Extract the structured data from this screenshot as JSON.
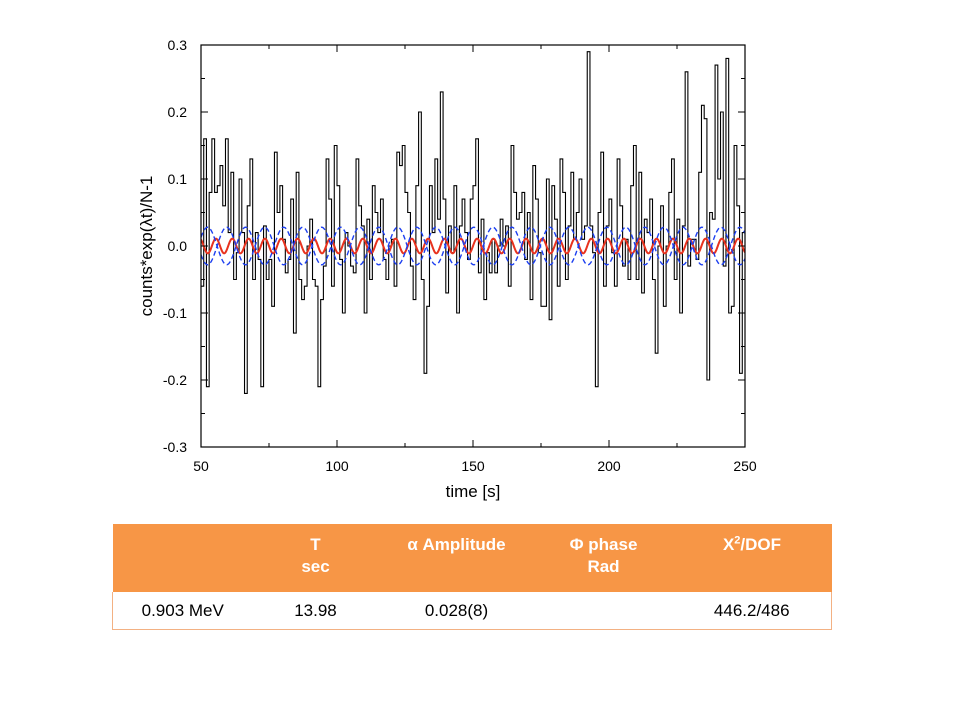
{
  "chart_data": {
    "type": "line",
    "xlabel": "time [s]",
    "ylabel": "counts*exp(λt)/N-1",
    "xlim": [
      50,
      250
    ],
    "ylim": [
      -0.3,
      0.3
    ],
    "x_ticks": [
      50,
      100,
      150,
      200,
      250
    ],
    "x_tick_labels": [
      "50",
      "100",
      "150",
      "200",
      "250"
    ],
    "y_ticks": [
      -0.3,
      -0.2,
      -0.1,
      0.0,
      0.1,
      0.2,
      0.3
    ],
    "y_tick_labels": [
      "-0.3",
      "-0.2",
      "-0.1",
      "0.0",
      "0.1",
      "0.2",
      "0.3"
    ],
    "grid": false,
    "series": [
      {
        "name": "",
        "style": "step",
        "color": "#000000",
        "x_start": 50,
        "x_step": 1,
        "values": [
          -0.06,
          0.16,
          -0.21,
          0.08,
          0.16,
          0.08,
          0.09,
          0.12,
          0.06,
          0.16,
          0.02,
          0.11,
          -0.05,
          -0.01,
          0.1,
          0.02,
          -0.22,
          0.06,
          0.13,
          -0.05,
          0.02,
          -0.02,
          -0.21,
          0.03,
          -0.05,
          -0.02,
          -0.09,
          0.14,
          0.05,
          0.09,
          0.01,
          -0.04,
          -0.02,
          0.07,
          -0.13,
          0.11,
          -0.05,
          -0.08,
          -0.06,
          0.0,
          0.04,
          -0.05,
          -0.06,
          -0.21,
          -0.08,
          -0.03,
          0.13,
          0.07,
          -0.06,
          0.15,
          0.09,
          -0.02,
          -0.1,
          0.02,
          0.0,
          -0.03,
          -0.04,
          0.13,
          0.06,
          0.03,
          -0.1,
          0.04,
          -0.05,
          0.09,
          0.05,
          0.02,
          0.07,
          -0.02,
          -0.05,
          0.0,
          0.01,
          -0.06,
          0.14,
          0.12,
          0.15,
          0.08,
          0.05,
          -0.03,
          -0.08,
          0.09,
          0.2,
          -0.05,
          -0.19,
          -0.09,
          0.09,
          0.02,
          0.13,
          0.04,
          0.23,
          0.07,
          -0.07,
          0.03,
          -0.01,
          0.09,
          -0.1,
          0.03,
          0.07,
          0.02,
          -0.02,
          0.07,
          0.09,
          0.16,
          -0.04,
          0.04,
          -0.08,
          -0.01,
          -0.04,
          0.01,
          -0.04,
          0.0,
          0.04,
          0.0,
          0.03,
          -0.06,
          0.15,
          0.08,
          0.04,
          0.05,
          0.08,
          -0.02,
          0.05,
          -0.08,
          0.12,
          0.07,
          -0.01,
          -0.09,
          -0.09,
          0.1,
          -0.11,
          0.09,
          0.04,
          -0.06,
          0.13,
          0.08,
          -0.05,
          0.03,
          0.11,
          0.01,
          0.05,
          0.1,
          0.01,
          0.03,
          0.29,
          0.03,
          -0.01,
          -0.21,
          0.05,
          0.14,
          -0.06,
          0.03,
          0.07,
          -0.01,
          -0.06,
          0.13,
          0.06,
          -0.03,
          0.01,
          -0.05,
          0.09,
          0.15,
          -0.05,
          0.11,
          -0.07,
          0.04,
          0.02,
          0.07,
          -0.05,
          -0.16,
          0.0,
          0.06,
          -0.09,
          0.0,
          0.08,
          0.13,
          -0.05,
          0.04,
          -0.1,
          0.03,
          0.26,
          -0.03,
          0.01,
          0.01,
          -0.02,
          0.11,
          0.21,
          0.19,
          -0.2,
          0.05,
          0.04,
          0.27,
          0.1,
          0.2,
          -0.03,
          0.28,
          -0.1,
          -0.09,
          0.15,
          0.06,
          -0.19,
          0.02
        ]
      },
      {
        "name": "",
        "style": "sine",
        "color": "#e8321e",
        "amplitude": 0.011,
        "period": 6.0,
        "phase": 0.0
      },
      {
        "name": "",
        "style": "sine-dashed",
        "color": "#1c3ff0",
        "amplitude": 0.028,
        "period": 13.98,
        "phase": 0.0
      },
      {
        "name": "",
        "style": "sine-dashed",
        "color": "#1c3ff0",
        "amplitude": 0.028,
        "period": 13.98,
        "phase": 3.14159
      }
    ]
  },
  "table": {
    "headers": [
      {
        "line1": "",
        "line2": ""
      },
      {
        "line1": "T",
        "line2": "sec"
      },
      {
        "line1": "α Amplitude",
        "line2": ""
      },
      {
        "line1": "Φ phase",
        "line2": "Rad"
      },
      {
        "line1": "X",
        "sup": "2",
        "rest": "/DOF"
      }
    ],
    "rows": [
      {
        "energy": "0.903 MeV",
        "period": "13.98",
        "amplitude": "0.028(8)",
        "phase": "",
        "chi2": "446.2/486"
      }
    ]
  }
}
